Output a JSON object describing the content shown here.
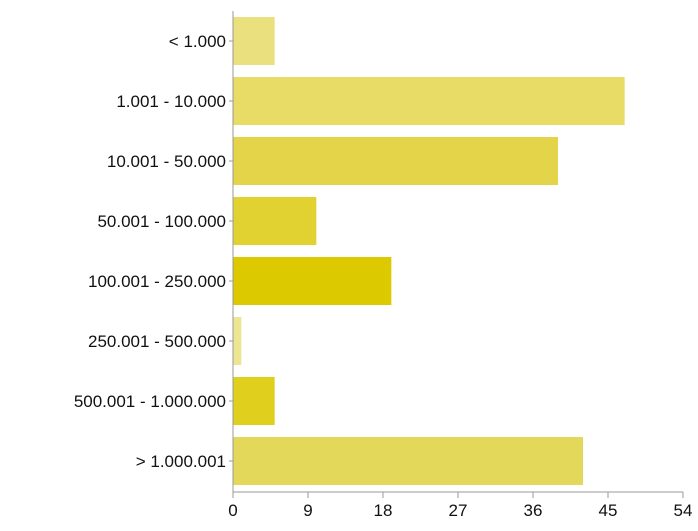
{
  "chart_data": {
    "type": "bar",
    "orientation": "horizontal",
    "categories": [
      "< 1.000",
      "1.001 - 10.000",
      "10.001 - 50.000",
      "50.001 - 100.000",
      "100.001 - 250.000",
      "250.001 - 500.000",
      "500.001 - 1.000.000",
      "> 1.000.001"
    ],
    "values": [
      5,
      47,
      39,
      10,
      19,
      1,
      5,
      42
    ],
    "bar_colors": [
      "#ebe07e",
      "#e8dc66",
      "#e3d449",
      "#e1d232",
      "#dcc900",
      "#eee592",
      "#e0cf1d",
      "#e4d85a"
    ],
    "xlim": [
      0,
      54
    ],
    "xticks": [
      "0",
      "9",
      "18",
      "27",
      "36",
      "45",
      "54"
    ],
    "grid": false,
    "legend": "none"
  }
}
